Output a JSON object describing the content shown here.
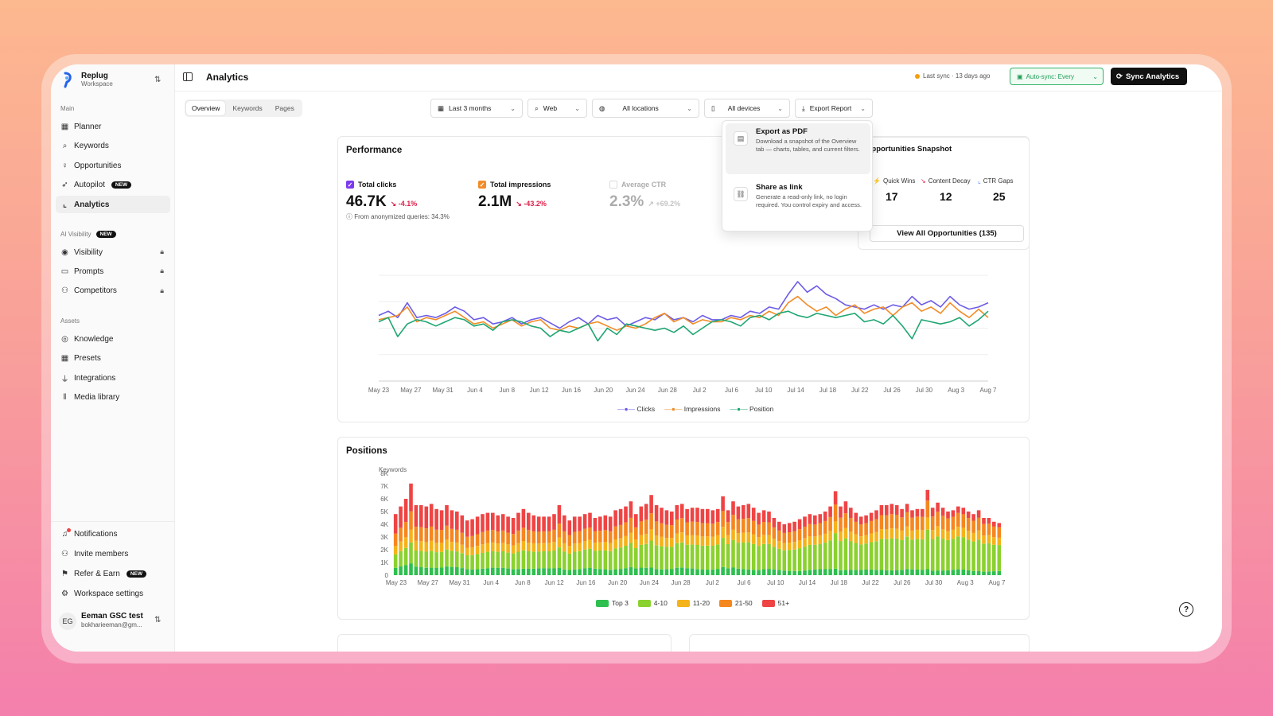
{
  "workspace": {
    "name": "Replug",
    "sub": "Workspace"
  },
  "sidebar": {
    "main_label": "Main",
    "main_items": [
      {
        "label": "Planner",
        "icon": "calendar-icon"
      },
      {
        "label": "Keywords",
        "icon": "search-icon"
      },
      {
        "label": "Opportunities",
        "icon": "lightbulb-icon"
      },
      {
        "label": "Autopilot",
        "icon": "rocket-icon",
        "badge": "NEW"
      },
      {
        "label": "Analytics",
        "icon": "chart-icon",
        "active": true
      }
    ],
    "ai_label": "AI Visibility",
    "ai_badge": "NEW",
    "ai_items": [
      {
        "label": "Visibility",
        "icon": "eye-icon",
        "locked": true
      },
      {
        "label": "Prompts",
        "icon": "chat-icon",
        "locked": true
      },
      {
        "label": "Competitors",
        "icon": "users-icon",
        "locked": true
      }
    ],
    "assets_label": "Assets",
    "assets_items": [
      {
        "label": "Knowledge",
        "icon": "book-icon"
      },
      {
        "label": "Presets",
        "icon": "grid-icon"
      },
      {
        "label": "Integrations",
        "icon": "plug-icon"
      },
      {
        "label": "Media library",
        "icon": "library-icon"
      }
    ],
    "bottom_items": [
      {
        "label": "Notifications",
        "icon": "bell-icon"
      },
      {
        "label": "Invite members",
        "icon": "user-plus-icon"
      },
      {
        "label": "Refer & Earn",
        "icon": "gift-icon",
        "badge": "NEW"
      },
      {
        "label": "Workspace settings",
        "icon": "gear-icon"
      }
    ],
    "user": {
      "initials": "EG",
      "name": "Eeman GSC test",
      "email": "bokharieeman@gm..."
    }
  },
  "header": {
    "title": "Analytics",
    "sync_status": "Last sync · 13 days ago",
    "autosync": "Auto-sync: Every",
    "sync_button": "Sync Analytics"
  },
  "tabs": [
    "Overview",
    "Keywords",
    "Pages"
  ],
  "filters": {
    "date": "Last 3 months",
    "search_type": "Web",
    "location": "All locations",
    "device": "All devices",
    "export": "Export Report"
  },
  "export_menu": [
    {
      "title": "Export as PDF",
      "desc": "Download a snapshot of the Overview tab — charts, tables, and current filters."
    },
    {
      "title": "Share as link",
      "desc": "Generate a read-only link, no login required. You control expiry and access."
    }
  ],
  "performance": {
    "title": "Performance",
    "metrics": [
      {
        "label": "Total clicks",
        "value": "46.7K",
        "change": "-4.1%",
        "color": "#7c3aed",
        "checked": true,
        "note": "From anonymized queries: 34.3%"
      },
      {
        "label": "Total impressions",
        "value": "2.1M",
        "change": "-43.2%",
        "color": "#f59e0b",
        "checked": true
      },
      {
        "label": "Average CTR",
        "value": "2.3%",
        "change": "+69.2%",
        "color": "#999999",
        "checked": false
      }
    ]
  },
  "opportunities": {
    "title": "Opportunities Snapshot",
    "items": [
      {
        "label": "Quick Wins",
        "value": "17"
      },
      {
        "label": "Content Decay",
        "value": "12"
      },
      {
        "label": "CTR Gaps",
        "value": "25"
      }
    ],
    "button": "View All Opportunities (135)"
  },
  "positions": {
    "title": "Positions"
  },
  "chart_data": [
    {
      "type": "line",
      "x_ticks": [
        "May 23",
        "May 27",
        "May 31",
        "Jun 4",
        "Jun 8",
        "Jun 12",
        "Jun 16",
        "Jun 20",
        "Jun 24",
        "Jun 28",
        "Jul 2",
        "Jul 6",
        "Jul 10",
        "Jul 14",
        "Jul 18",
        "Jul 22",
        "Jul 26",
        "Jul 30",
        "Aug 3",
        "Aug 7"
      ],
      "series": [
        {
          "name": "Clicks",
          "color": "#6d5ce7",
          "values": [
            0.62,
            0.66,
            0.6,
            0.74,
            0.6,
            0.62,
            0.6,
            0.64,
            0.7,
            0.66,
            0.58,
            0.6,
            0.54,
            0.56,
            0.6,
            0.54,
            0.58,
            0.6,
            0.55,
            0.5,
            0.56,
            0.6,
            0.54,
            0.62,
            0.58,
            0.6,
            0.52,
            0.56,
            0.6,
            0.58,
            0.64,
            0.58,
            0.6,
            0.56,
            0.62,
            0.58,
            0.58,
            0.62,
            0.6,
            0.66,
            0.64,
            0.7,
            0.68,
            0.82,
            0.94,
            0.84,
            0.9,
            0.82,
            0.78,
            0.72,
            0.7,
            0.68,
            0.72,
            0.68,
            0.72,
            0.7,
            0.8,
            0.72,
            0.76,
            0.7,
            0.8,
            0.72,
            0.68,
            0.7,
            0.74
          ]
        },
        {
          "name": "Impressions",
          "color": "#f28c28",
          "values": [
            0.58,
            0.6,
            0.62,
            0.7,
            0.56,
            0.6,
            0.58,
            0.62,
            0.66,
            0.6,
            0.54,
            0.56,
            0.5,
            0.54,
            0.58,
            0.52,
            0.56,
            0.58,
            0.5,
            0.48,
            0.52,
            0.5,
            0.54,
            0.56,
            0.52,
            0.48,
            0.52,
            0.5,
            0.54,
            0.6,
            0.64,
            0.56,
            0.6,
            0.54,
            0.58,
            0.56,
            0.56,
            0.6,
            0.58,
            0.62,
            0.6,
            0.66,
            0.62,
            0.74,
            0.8,
            0.72,
            0.66,
            0.7,
            0.62,
            0.68,
            0.72,
            0.64,
            0.68,
            0.7,
            0.62,
            0.7,
            0.74,
            0.66,
            0.7,
            0.64,
            0.74,
            0.66,
            0.6,
            0.68,
            0.6
          ]
        },
        {
          "name": "Position",
          "color": "#1ea672",
          "values": [
            0.56,
            0.6,
            0.42,
            0.54,
            0.58,
            0.56,
            0.52,
            0.56,
            0.6,
            0.58,
            0.52,
            0.54,
            0.48,
            0.56,
            0.58,
            0.56,
            0.52,
            0.5,
            0.42,
            0.48,
            0.46,
            0.5,
            0.54,
            0.38,
            0.5,
            0.44,
            0.54,
            0.52,
            0.5,
            0.48,
            0.5,
            0.46,
            0.52,
            0.44,
            0.5,
            0.56,
            0.58,
            0.56,
            0.52,
            0.6,
            0.62,
            0.58,
            0.64,
            0.66,
            0.62,
            0.6,
            0.64,
            0.62,
            0.6,
            0.62,
            0.64,
            0.56,
            0.58,
            0.54,
            0.62,
            0.52,
            0.4,
            0.58,
            0.56,
            0.54,
            0.56,
            0.6,
            0.52,
            0.58,
            0.66
          ]
        }
      ],
      "legend": [
        "Clicks",
        "Impressions",
        "Position"
      ]
    },
    {
      "type": "bar",
      "stacked": true,
      "ylabel": "Keywords",
      "y_ticks": [
        "0",
        "1K",
        "2K",
        "3K",
        "4K",
        "5K",
        "6K",
        "7K",
        "8K"
      ],
      "ylim": [
        0,
        8000
      ],
      "x_ticks": [
        "May 23",
        "May 27",
        "May 31",
        "Jun 4",
        "Jun 8",
        "Jun 12",
        "Jun 16",
        "Jun 20",
        "Jun 24",
        "Jun 28",
        "Jul 2",
        "Jul 6",
        "Jul 10",
        "Jul 14",
        "Jul 18",
        "Jul 22",
        "Jul 26",
        "Jul 30",
        "Aug 3",
        "Aug 7"
      ],
      "series": [
        {
          "name": "Top 3",
          "color": "#2fbf4f"
        },
        {
          "name": "4-10",
          "color": "#8bd12f"
        },
        {
          "name": "11-20",
          "color": "#f5b31a"
        },
        {
          "name": "21-50",
          "color": "#f5871f"
        },
        {
          "name": "51+",
          "color": "#ef4444"
        }
      ],
      "totals": [
        4800,
        5400,
        6000,
        7200,
        5500,
        5500,
        5400,
        5600,
        5200,
        5100,
        5500,
        5100,
        5000,
        4700,
        4300,
        4400,
        4600,
        4800,
        4900,
        4900,
        4700,
        4800,
        4600,
        4500,
        4900,
        5200,
        4900,
        4700,
        4600,
        4600,
        4600,
        4800,
        5500,
        4700,
        4300,
        4600,
        4600,
        4800,
        4900,
        4500,
        4600,
        4700,
        4600,
        5100,
        5200,
        5400,
        5800,
        4800,
        5400,
        5600,
        6300,
        5500,
        5300,
        5100,
        5000,
        5500,
        5600,
        5200,
        5300,
        5300,
        5200,
        5200,
        5100,
        5200,
        6200,
        5100,
        5800,
        5400,
        5500,
        5600,
        5300,
        4900,
        5100,
        5000,
        4500,
        4200,
        4000,
        4100,
        4200,
        4400,
        4600,
        4800,
        4700,
        4800,
        5000,
        5400,
        6600,
        5400,
        5800,
        5300,
        4900,
        4600,
        4700,
        4900,
        5100,
        5500,
        5500,
        5600,
        5500,
        5200,
        5600,
        5100,
        5200,
        5200,
        6700,
        5300,
        5700,
        5300,
        5000,
        5100,
        5400,
        5300,
        5000,
        4800,
        5100,
        4500,
        4500,
        4200,
        4100
      ]
    }
  ]
}
